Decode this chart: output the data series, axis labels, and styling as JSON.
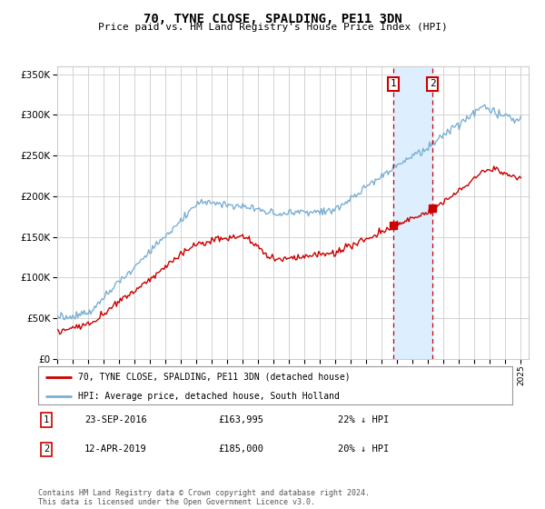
{
  "title": "70, TYNE CLOSE, SPALDING, PE11 3DN",
  "subtitle": "Price paid vs. HM Land Registry's House Price Index (HPI)",
  "ylabel_ticks": [
    0,
    50000,
    100000,
    150000,
    200000,
    250000,
    300000,
    350000
  ],
  "xmin": 1995.0,
  "xmax": 2025.5,
  "ymin": 0,
  "ymax": 360000,
  "sale1_date": 2016.73,
  "sale1_price": 163995,
  "sale1_label": "23-SEP-2016",
  "sale1_pct": "22% ↓ HPI",
  "sale2_date": 2019.28,
  "sale2_price": 185000,
  "sale2_label": "12-APR-2019",
  "sale2_pct": "20% ↓ HPI",
  "legend_line1": "70, TYNE CLOSE, SPALDING, PE11 3DN (detached house)",
  "legend_line2": "HPI: Average price, detached house, South Holland",
  "footer": "Contains HM Land Registry data © Crown copyright and database right 2024.\nThis data is licensed under the Open Government Licence v3.0.",
  "line_red": "#cc0000",
  "line_blue": "#7bafd4",
  "shade_color": "#ddeeff",
  "marker_color": "#cc0000",
  "grid_color": "#cccccc",
  "bg_color": "#ffffff"
}
